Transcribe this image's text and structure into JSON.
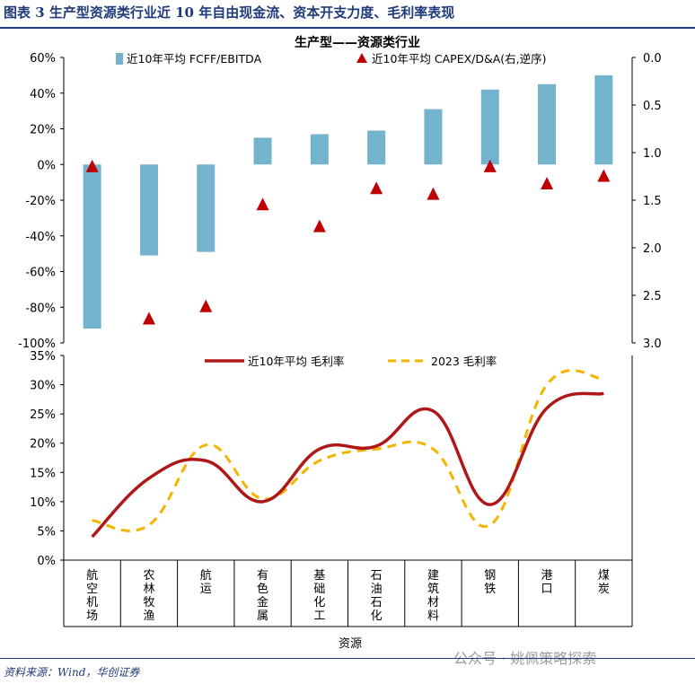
{
  "figure_title": "图表 3  生产型资源类行业近 10 年自由现金流、资本开支力度、毛利率表现",
  "source_note": "资料来源：Wind，华创证券",
  "watermark": "公众号 · 姚佩策略探索",
  "colors": {
    "bar": "#74b3cc",
    "triangle": "#c00000",
    "line_avg": "#b01818",
    "line_2023": "#f4b400",
    "title": "#1f3a7a"
  },
  "chart_data": [
    {
      "type": "bar",
      "title": "生产型——资源类行业",
      "categories": [
        "航空机场",
        "农林牧渔",
        "航运",
        "有色金属",
        "基础化工",
        "石油石化",
        "建筑材料",
        "钢铁",
        "港口",
        "煤炭"
      ],
      "series": [
        {
          "name": "近10年平均 FCFF/EBITDA",
          "axis": "left",
          "values": [
            -0.92,
            -0.51,
            -0.49,
            0.15,
            0.17,
            0.19,
            0.31,
            0.42,
            0.45,
            0.5
          ]
        },
        {
          "name": "近10年平均 CAPEX/D&A(右,逆序)",
          "axis": "right",
          "marker": "triangle",
          "values": [
            1.15,
            2.75,
            2.62,
            1.55,
            1.78,
            1.38,
            1.44,
            1.15,
            1.33,
            1.25
          ]
        }
      ],
      "ylim_left": [
        -1.0,
        0.6
      ],
      "yticks_left": [
        "60%",
        "40%",
        "20%",
        "0%",
        "-20%",
        "-40%",
        "-60%",
        "-80%",
        "-100%"
      ],
      "ylim_right": [
        0.0,
        3.0
      ],
      "yticks_right": [
        "0.0",
        "0.5",
        "1.0",
        "1.5",
        "2.0",
        "2.5",
        "3.0"
      ],
      "right_axis_reversed": true,
      "legend": "top"
    },
    {
      "type": "line",
      "categories": [
        "航空机场",
        "农林牧渔",
        "航运",
        "有色金属",
        "基础化工",
        "石油石化",
        "建筑材料",
        "钢铁",
        "港口",
        "煤炭"
      ],
      "category_lines": [
        [
          "航",
          "空",
          "机",
          "场"
        ],
        [
          "农",
          "林",
          "牧",
          "渔"
        ],
        [
          "航",
          "运"
        ],
        [
          "有",
          "色",
          "金",
          "属"
        ],
        [
          "基",
          "础",
          "化",
          "工"
        ],
        [
          "石",
          "油",
          "石",
          "化"
        ],
        [
          "建",
          "筑",
          "材",
          "料"
        ],
        [
          "钢",
          "铁"
        ],
        [
          "港",
          "口"
        ],
        [
          "煤",
          "炭"
        ]
      ],
      "series": [
        {
          "name": "近10年平均 毛利率",
          "style": "solid",
          "values": [
            0.04,
            0.14,
            0.17,
            0.1,
            0.19,
            0.195,
            0.255,
            0.095,
            0.26,
            0.285
          ]
        },
        {
          "name": "2023 毛利率",
          "style": "dashed",
          "values": [
            0.068,
            0.06,
            0.197,
            0.105,
            0.17,
            0.19,
            0.19,
            0.06,
            0.3,
            0.31
          ]
        }
      ],
      "ylim": [
        0,
        0.35
      ],
      "yticks": [
        "35%",
        "30%",
        "25%",
        "20%",
        "15%",
        "10%",
        "5%",
        "0%"
      ],
      "xlabel": "资源",
      "legend": "top"
    }
  ]
}
